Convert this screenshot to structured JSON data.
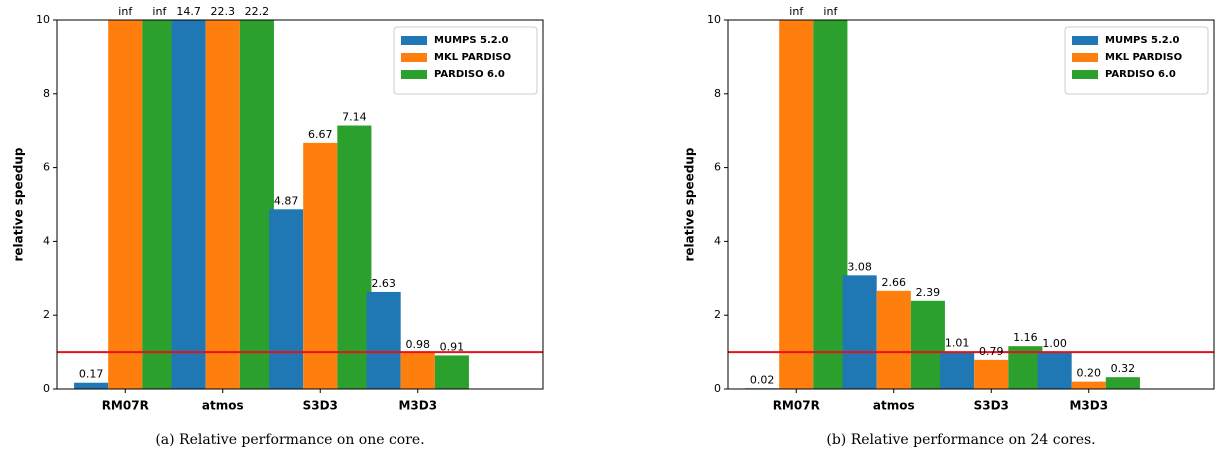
{
  "chart_data": [
    {
      "type": "bar",
      "caption": "(a) Relative performance on one core.",
      "ylabel": "relative speedup",
      "categories": [
        "RM07R",
        "atmos",
        "S3D3",
        "M3D3"
      ],
      "series": [
        {
          "name": "MUMPS 5.2.0",
          "color": "#1f77b4",
          "values": [
            0.17,
            14.7,
            4.87,
            2.63
          ],
          "value_labels": [
            "0.17",
            "14.7",
            "4.87",
            "2.63"
          ]
        },
        {
          "name": "MKL PARDISO",
          "color": "#ff7f0e",
          "values": [
            null,
            22.3,
            6.67,
            0.98
          ],
          "value_labels": [
            "inf",
            "22.3",
            "6.67",
            "0.98"
          ]
        },
        {
          "name": "PARDISO 6.0",
          "color": "#2ca02c",
          "values": [
            null,
            22.2,
            7.14,
            0.91
          ],
          "value_labels": [
            "inf",
            "22.2",
            "7.14",
            "0.91"
          ]
        }
      ],
      "ylim": [
        0,
        10
      ],
      "yticks": [
        0,
        2,
        4,
        6,
        8,
        10
      ],
      "reference_line": 1,
      "reference_color": "#e8101a",
      "legend": "upper right"
    },
    {
      "type": "bar",
      "caption": "(b) Relative performance on 24 cores.",
      "ylabel": "relative speedup",
      "categories": [
        "RM07R",
        "atmos",
        "S3D3",
        "M3D3"
      ],
      "series": [
        {
          "name": "MUMPS 5.2.0",
          "color": "#1f77b4",
          "values": [
            0.02,
            3.08,
            1.01,
            1.0
          ],
          "value_labels": [
            "0.02",
            "3.08",
            "1.01",
            "1.00"
          ]
        },
        {
          "name": "MKL PARDISO",
          "color": "#ff7f0e",
          "values": [
            null,
            2.66,
            0.79,
            0.2
          ],
          "value_labels": [
            "inf",
            "2.66",
            "0.79",
            "0.20"
          ]
        },
        {
          "name": "PARDISO 6.0",
          "color": "#2ca02c",
          "values": [
            null,
            2.39,
            1.16,
            0.32
          ],
          "value_labels": [
            "inf",
            "2.39",
            "1.16",
            "0.32"
          ]
        }
      ],
      "ylim": [
        0,
        10
      ],
      "yticks": [
        0,
        2,
        4,
        6,
        8,
        10
      ],
      "reference_line": 1,
      "reference_color": "#e8101a",
      "legend": "upper right"
    }
  ]
}
